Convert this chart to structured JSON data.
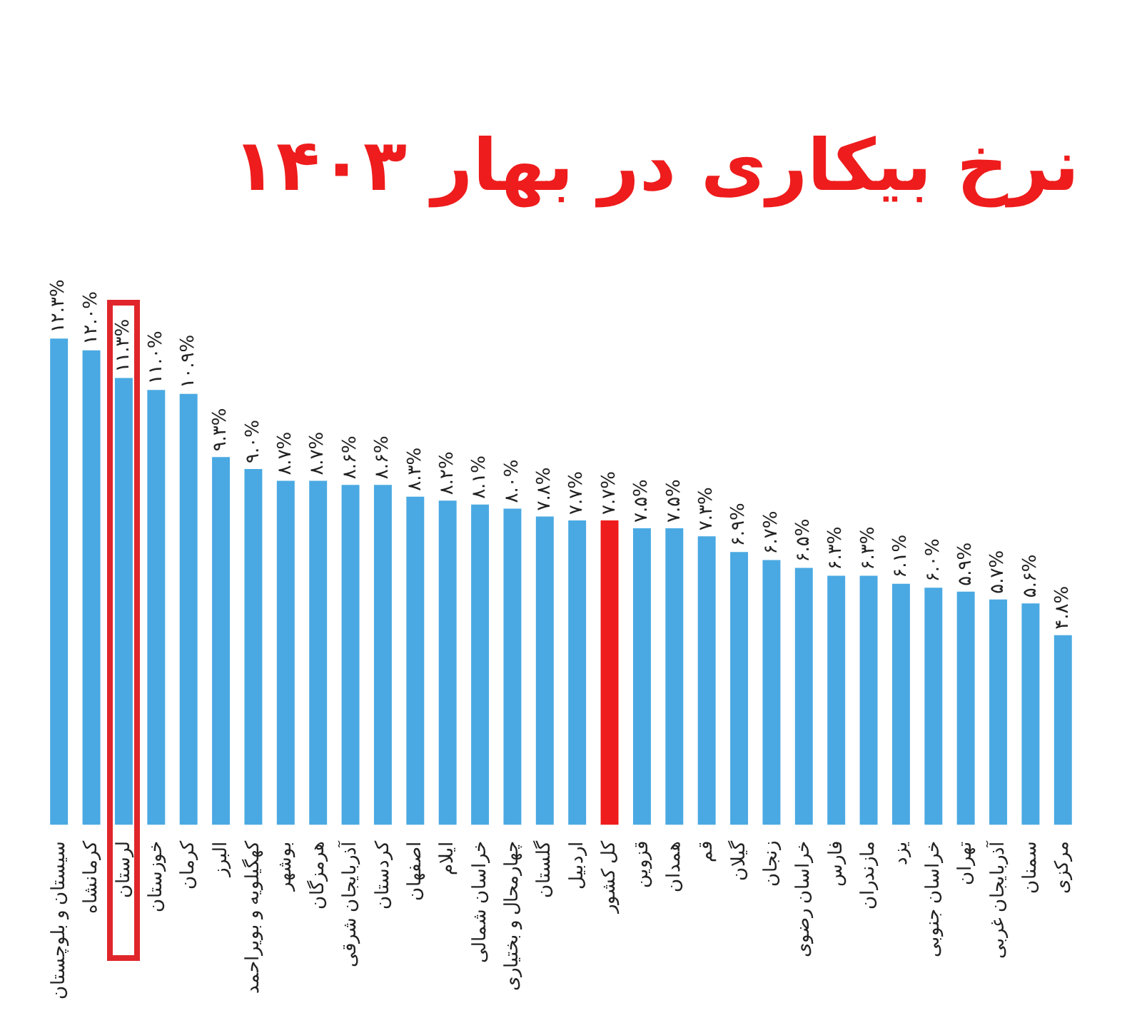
{
  "chart_data": {
    "type": "bar",
    "title": "نرخ بیکاری در بهار ۱۴۰۳",
    "categories": [
      "سیستان و بلوچستان",
      "کرمانشاه",
      "لرستان",
      "خوزستان",
      "کرمان",
      "البرز",
      "کهگیلویه و بویراحمد",
      "بوشهر",
      "هرمزگان",
      "آذربایجان شرقی",
      "کردستان",
      "اصفهان",
      "ایلام",
      "خراسان شمالی",
      "چهارمحال و بختیاری",
      "گلستان",
      "اردبیل",
      "کل کشور",
      "قزوین",
      "همدان",
      "قم",
      "گیلان",
      "زنجان",
      "خراسان رضوی",
      "فارس",
      "مازندران",
      "یزد",
      "خراسان جنوبی",
      "تهران",
      "آذربایجان غربی",
      "سمنان",
      "مرکزی"
    ],
    "values": [
      12.3,
      12.0,
      11.3,
      11.0,
      10.9,
      9.3,
      9.0,
      8.7,
      8.7,
      8.6,
      8.6,
      8.3,
      8.2,
      8.1,
      8.0,
      7.8,
      7.7,
      7.7,
      7.5,
      7.5,
      7.3,
      6.9,
      6.7,
      6.5,
      6.3,
      6.3,
      6.1,
      6.0,
      5.9,
      5.7,
      5.6,
      4.8
    ],
    "value_labels": [
      "۱۲.۳%",
      "۱۲.۰%",
      "۱۱.۳%",
      "۱۱.۰%",
      "۱۰.۹%",
      "۹.۳%",
      "۹.۰%",
      "۸.۷%",
      "۸.۷%",
      "۸.۶%",
      "۸.۶%",
      "۸.۳%",
      "۸.۲%",
      "۸.۱%",
      "۸.۰%",
      "۷.۸%",
      "۷.۷%",
      "۷.۷%",
      "۷.۵%",
      "۷.۵%",
      "۷.۳%",
      "۶.۹%",
      "۶.۷%",
      "۶.۵%",
      "۶.۳%",
      "۶.۳%",
      "۶.۱%",
      "۶.۰%",
      "۵.۹%",
      "۵.۷%",
      "۵.۶%",
      "۴.۸%"
    ],
    "colors": [
      "#4aa9e2",
      "#4aa9e2",
      "#4aa9e2",
      "#4aa9e2",
      "#4aa9e2",
      "#4aa9e2",
      "#4aa9e2",
      "#4aa9e2",
      "#4aa9e2",
      "#4aa9e2",
      "#4aa9e2",
      "#4aa9e2",
      "#4aa9e2",
      "#4aa9e2",
      "#4aa9e2",
      "#4aa9e2",
      "#4aa9e2",
      "#ee1c1c",
      "#4aa9e2",
      "#4aa9e2",
      "#4aa9e2",
      "#4aa9e2",
      "#4aa9e2",
      "#4aa9e2",
      "#4aa9e2",
      "#4aa9e2",
      "#4aa9e2",
      "#4aa9e2",
      "#4aa9e2",
      "#4aa9e2",
      "#4aa9e2",
      "#4aa9e2"
    ],
    "tick_labels": "x",
    "grid": false,
    "legend": false
  }
}
